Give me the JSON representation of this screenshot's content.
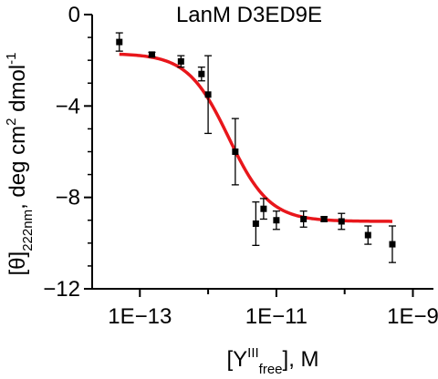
{
  "chart_data": {
    "type": "scatter",
    "title": "LanM D3ED9E",
    "xlabel": {
      "pre": "[Y",
      "sup": "III",
      "sub": "free",
      "post": "], M"
    },
    "ylabel": {
      "pre": "[θ]",
      "sub": "222nm",
      "mid": ", deg cm",
      "sup1": "2",
      "mid2": " dmol",
      "sup2": "-1"
    },
    "x_scale": "log",
    "xlim": [
      2e-14,
      2e-09
    ],
    "ylim": [
      -12,
      0
    ],
    "x_ticks": [
      {
        "value": 1e-13,
        "label": "1E−13"
      },
      {
        "value": 1e-11,
        "label": "1E−11"
      },
      {
        "value": 1e-09,
        "label": "1E−9"
      }
    ],
    "y_ticks": [
      {
        "value": 0,
        "label": "0"
      },
      {
        "value": -4,
        "label": "−4"
      },
      {
        "value": -8,
        "label": "−8"
      },
      {
        "value": -12,
        "label": "−12"
      }
    ],
    "grid": false,
    "series": [
      {
        "points": [
          {
            "x": 5e-14,
            "y": -1.2,
            "err": 0.4
          },
          {
            "x": 1.5e-13,
            "y": -1.75,
            "err": 0.1
          },
          {
            "x": 4e-13,
            "y": -2.05,
            "err": 0.25
          },
          {
            "x": 8e-13,
            "y": -2.6,
            "err": 0.3
          },
          {
            "x": 1e-12,
            "y": -3.5,
            "err": 1.7
          },
          {
            "x": 2.5e-12,
            "y": -6.0,
            "err": 1.45
          },
          {
            "x": 5e-12,
            "y": -9.15,
            "err": 0.95
          },
          {
            "x": 6.5e-12,
            "y": -8.5,
            "err": 0.45
          },
          {
            "x": 1e-11,
            "y": -9.0,
            "err": 0.4
          },
          {
            "x": 2.5e-11,
            "y": -8.95,
            "err": 0.35
          },
          {
            "x": 5e-11,
            "y": -8.95,
            "err": 0.1
          },
          {
            "x": 9e-11,
            "y": -9.05,
            "err": 0.35
          },
          {
            "x": 2.2e-10,
            "y": -9.65,
            "err": 0.4
          },
          {
            "x": 5e-10,
            "y": -10.05,
            "err": 0.8
          }
        ]
      }
    ],
    "fit": {
      "color": "#e8161b",
      "bottom": -1.7,
      "top": -9.05,
      "log_ec50": -11.7,
      "hill": 1.45,
      "x_range": [
        5e-14,
        5e-10
      ]
    }
  }
}
